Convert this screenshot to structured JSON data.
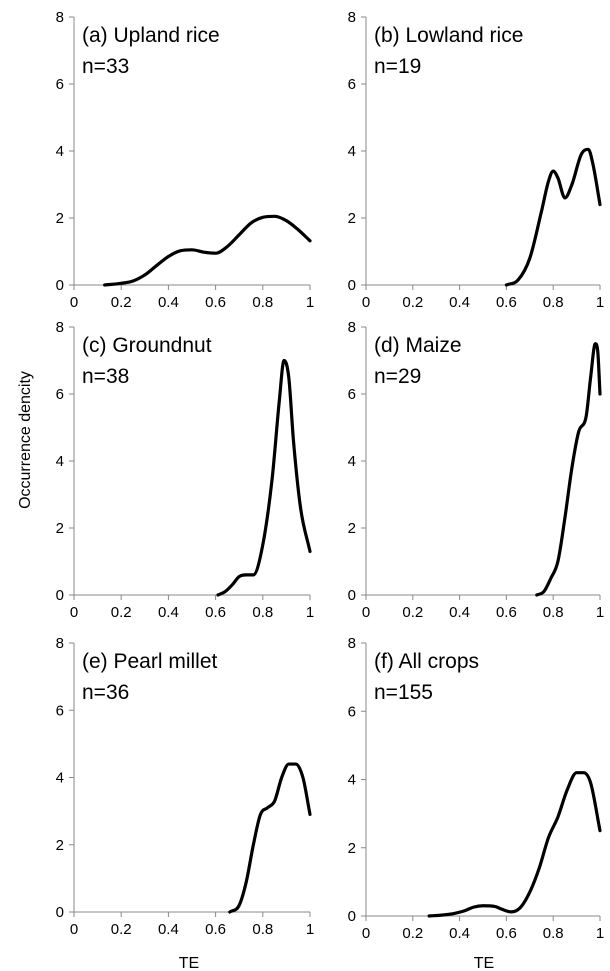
{
  "figure": {
    "ylabel": "Occurrence dencity",
    "xlabel": "TE"
  },
  "chart_data": [
    {
      "type": "line",
      "panel_label": "(a) Upland rice",
      "n_label": "n=33",
      "xlim": [
        0,
        1
      ],
      "ylim": [
        0,
        8
      ],
      "x_ticks": [
        "0",
        "0.2",
        "0.4",
        "0.6",
        "0.8",
        "1"
      ],
      "y_ticks": [
        "0",
        "2",
        "4",
        "6",
        "8"
      ],
      "grid": false,
      "series": [
        {
          "color": "#000000",
          "x": [
            0.13,
            0.2,
            0.25,
            0.3,
            0.35,
            0.4,
            0.45,
            0.5,
            0.55,
            0.6,
            0.65,
            0.7,
            0.75,
            0.8,
            0.85,
            0.9,
            0.95,
            1.0
          ],
          "y": [
            0.0,
            0.05,
            0.12,
            0.3,
            0.58,
            0.85,
            1.02,
            1.05,
            0.98,
            0.95,
            1.15,
            1.5,
            1.85,
            2.02,
            2.05,
            1.92,
            1.65,
            1.32
          ]
        }
      ]
    },
    {
      "type": "line",
      "panel_label": "(b) Lowland rice",
      "n_label": "n=19",
      "xlim": [
        0,
        1
      ],
      "ylim": [
        0,
        8
      ],
      "x_ticks": [
        "0",
        "0.2",
        "0.4",
        "0.6",
        "0.8",
        "1"
      ],
      "y_ticks": [
        "0",
        "2",
        "4",
        "6",
        "8"
      ],
      "grid": false,
      "series": [
        {
          "color": "#000000",
          "x": [
            0.6,
            0.65,
            0.7,
            0.75,
            0.78,
            0.8,
            0.82,
            0.85,
            0.88,
            0.92,
            0.95,
            0.97,
            1.0
          ],
          "y": [
            0.0,
            0.15,
            0.8,
            2.2,
            3.1,
            3.4,
            3.2,
            2.6,
            3.0,
            3.9,
            4.05,
            3.6,
            2.4
          ]
        }
      ]
    },
    {
      "type": "line",
      "panel_label": "(c) Groundnut",
      "n_label": "n=38",
      "xlim": [
        0,
        1
      ],
      "ylim": [
        0,
        8
      ],
      "x_ticks": [
        "0",
        "0.2",
        "0.4",
        "0.6",
        "0.8",
        "1"
      ],
      "y_ticks": [
        "0",
        "2",
        "4",
        "6",
        "8"
      ],
      "grid": false,
      "series": [
        {
          "color": "#000000",
          "x": [
            0.61,
            0.64,
            0.67,
            0.7,
            0.73,
            0.76,
            0.8,
            0.84,
            0.87,
            0.89,
            0.91,
            0.93,
            0.96,
            1.0
          ],
          "y": [
            0.0,
            0.1,
            0.3,
            0.55,
            0.6,
            0.6,
            1.5,
            3.5,
            5.8,
            7.0,
            6.5,
            4.6,
            2.6,
            1.3
          ]
        }
      ]
    },
    {
      "type": "line",
      "panel_label": "(d) Maize",
      "n_label": "n=29",
      "xlim": [
        0,
        1
      ],
      "ylim": [
        0,
        8
      ],
      "x_ticks": [
        "0",
        "0.2",
        "0.4",
        "0.6",
        "0.8",
        "1"
      ],
      "y_ticks": [
        "0",
        "2",
        "4",
        "6",
        "8"
      ],
      "grid": false,
      "series": [
        {
          "color": "#000000",
          "x": [
            0.73,
            0.76,
            0.79,
            0.82,
            0.85,
            0.88,
            0.91,
            0.94,
            0.96,
            0.98,
            0.99,
            1.0
          ],
          "y": [
            0.0,
            0.1,
            0.5,
            1.0,
            2.3,
            3.8,
            4.9,
            5.3,
            6.5,
            7.5,
            7.3,
            6.0
          ]
        }
      ]
    },
    {
      "type": "line",
      "panel_label": "(e) Pearl millet",
      "n_label": "n=36",
      "xlim": [
        0,
        1
      ],
      "ylim": [
        0,
        8
      ],
      "x_ticks": [
        "0",
        "0.2",
        "0.4",
        "0.6",
        "0.8",
        "1"
      ],
      "y_ticks": [
        "0",
        "2",
        "4",
        "6",
        "8"
      ],
      "grid": false,
      "series": [
        {
          "color": "#000000",
          "x": [
            0.66,
            0.7,
            0.73,
            0.76,
            0.79,
            0.82,
            0.85,
            0.88,
            0.91,
            0.94,
            0.97,
            1.0
          ],
          "y": [
            0.0,
            0.2,
            0.9,
            2.0,
            2.9,
            3.1,
            3.3,
            4.0,
            4.4,
            4.4,
            4.0,
            2.9
          ]
        }
      ]
    },
    {
      "type": "line",
      "panel_label": "(f) All crops",
      "n_label": "n=155",
      "xlim": [
        0,
        1
      ],
      "ylim": [
        0,
        8
      ],
      "x_ticks": [
        "0",
        "0.2",
        "0.4",
        "0.6",
        "0.8",
        "1"
      ],
      "y_ticks": [
        "0",
        "2",
        "4",
        "6",
        "8"
      ],
      "grid": false,
      "series": [
        {
          "color": "#000000",
          "x": [
            0.27,
            0.33,
            0.38,
            0.42,
            0.46,
            0.5,
            0.55,
            0.58,
            0.62,
            0.66,
            0.7,
            0.74,
            0.78,
            0.82,
            0.86,
            0.9,
            0.93,
            0.96,
            1.0
          ],
          "y": [
            0.0,
            0.03,
            0.08,
            0.15,
            0.26,
            0.3,
            0.28,
            0.2,
            0.12,
            0.25,
            0.7,
            1.4,
            2.3,
            2.9,
            3.7,
            4.2,
            4.2,
            3.9,
            2.5
          ]
        }
      ]
    }
  ]
}
